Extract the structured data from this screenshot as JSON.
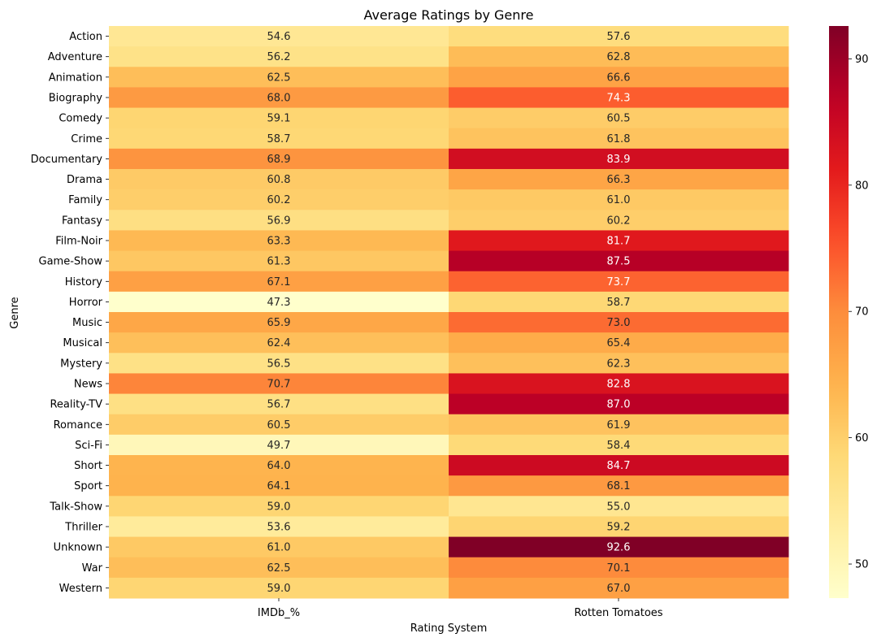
{
  "chart_data": {
    "type": "heatmap",
    "title": "Average Ratings by Genre",
    "xlabel": "Rating System",
    "ylabel": "Genre",
    "columns": [
      "IMDb_%",
      "Rotten Tomatoes"
    ],
    "rows": [
      "Action",
      "Adventure",
      "Animation",
      "Biography",
      "Comedy",
      "Crime",
      "Documentary",
      "Drama",
      "Family",
      "Fantasy",
      "Film-Noir",
      "Game-Show",
      "History",
      "Horror",
      "Music",
      "Musical",
      "Mystery",
      "News",
      "Reality-TV",
      "Romance",
      "Sci-Fi",
      "Short",
      "Sport",
      "Talk-Show",
      "Thriller",
      "Unknown",
      "War",
      "Western"
    ],
    "values": [
      [
        54.6,
        57.6
      ],
      [
        56.2,
        62.8
      ],
      [
        62.5,
        66.6
      ],
      [
        68.0,
        74.3
      ],
      [
        59.1,
        60.5
      ],
      [
        58.7,
        61.8
      ],
      [
        68.9,
        83.9
      ],
      [
        60.8,
        66.3
      ],
      [
        60.2,
        61.0
      ],
      [
        56.9,
        60.2
      ],
      [
        63.3,
        81.7
      ],
      [
        61.3,
        87.5
      ],
      [
        67.1,
        73.7
      ],
      [
        47.3,
        58.7
      ],
      [
        65.9,
        73.0
      ],
      [
        62.4,
        65.4
      ],
      [
        56.5,
        62.3
      ],
      [
        70.7,
        82.8
      ],
      [
        56.7,
        87.0
      ],
      [
        60.5,
        61.9
      ],
      [
        49.7,
        58.4
      ],
      [
        64.0,
        84.7
      ],
      [
        64.1,
        68.1
      ],
      [
        59.0,
        55.0
      ],
      [
        53.6,
        59.2
      ],
      [
        61.0,
        92.6
      ],
      [
        62.5,
        70.1
      ],
      [
        59.0,
        67.0
      ]
    ],
    "vmin": 47.3,
    "vmax": 92.6,
    "colormap": "YlOrRd",
    "colorbar_ticks": [
      50,
      60,
      70,
      80,
      90
    ],
    "colorbar_labels": [
      "50",
      "60",
      "70",
      "80",
      "90"
    ]
  }
}
